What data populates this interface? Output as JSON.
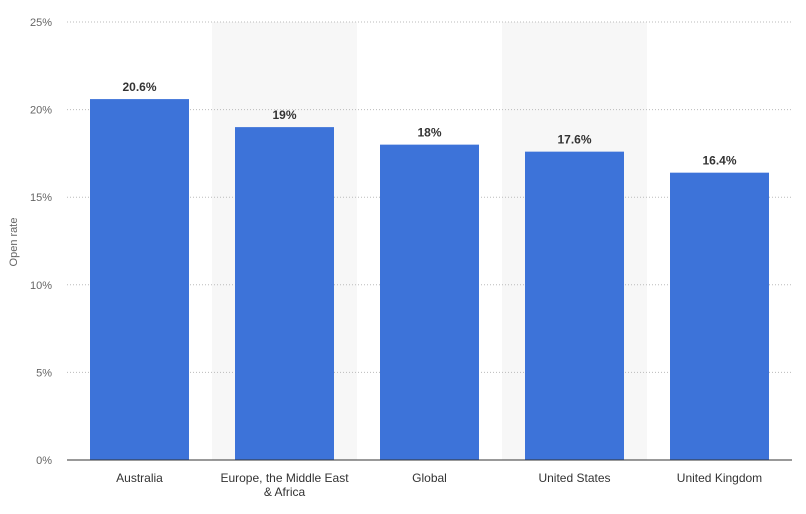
{
  "chart_data": {
    "type": "bar",
    "categories": [
      "Australia",
      "Europe, the Middle East & Africa",
      "Global",
      "United States",
      "United Kingdom"
    ],
    "category_lines": [
      [
        "Australia"
      ],
      [
        "Europe, the Middle East",
        "& Africa"
      ],
      [
        "Global"
      ],
      [
        "United States"
      ],
      [
        "United Kingdom"
      ]
    ],
    "values": [
      20.6,
      19,
      18,
      17.6,
      16.4
    ],
    "value_labels": [
      "20.6%",
      "19%",
      "18%",
      "17.6%",
      "16.4%"
    ],
    "ylabel": "Open rate",
    "ylim": [
      0,
      25
    ],
    "yticks": [
      0,
      5,
      10,
      15,
      20,
      25
    ],
    "ytick_labels": [
      "0%",
      "5%",
      "10%",
      "15%",
      "20%",
      "25%"
    ],
    "grid": true,
    "alternate_band_shading": true,
    "bar_color": "#3d73d9",
    "band_color": "#f7f7f7",
    "grid_color": "#bbbbbb"
  }
}
